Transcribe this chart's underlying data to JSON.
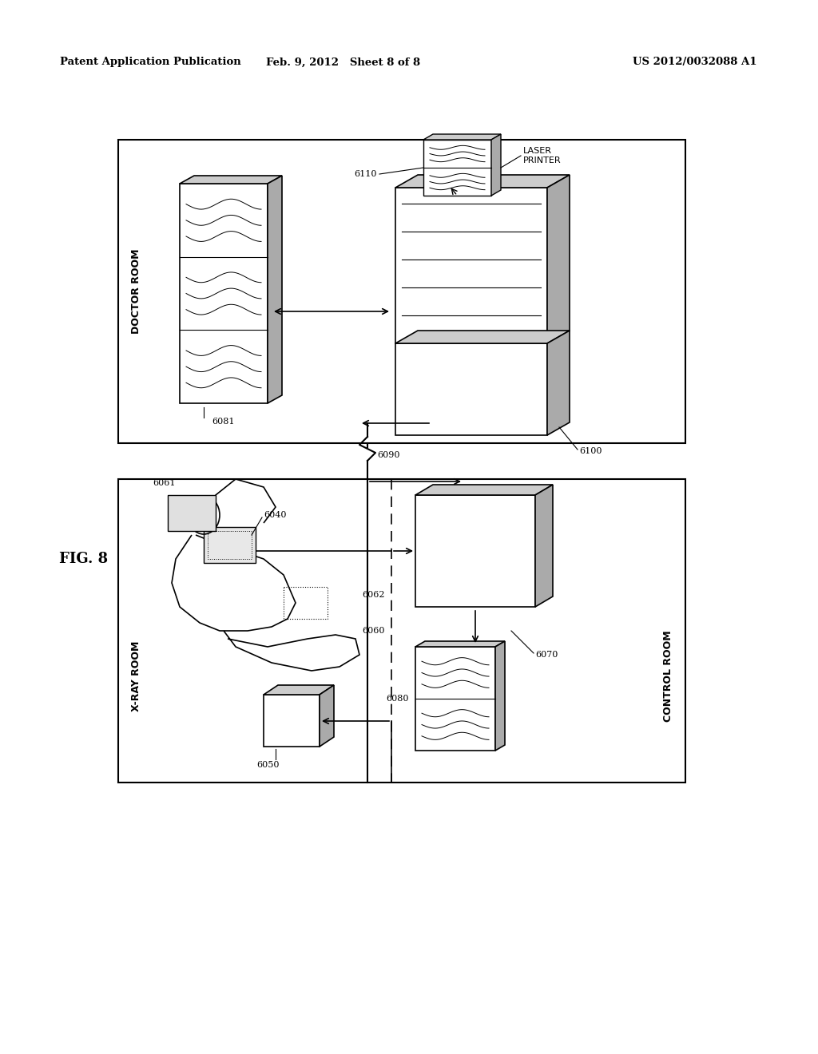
{
  "bg_color": "#ffffff",
  "header_left": "Patent Application Publication",
  "header_mid": "Feb. 9, 2012   Sheet 8 of 8",
  "header_right": "US 2012/0032088 A1",
  "fig_label": "FIG. 8",
  "doctor_room_label": "DOCTOR ROOM",
  "xray_room_label": "X-RAY ROOM",
  "control_room_label": "CONTROL ROOM",
  "laser_printer_label": "LASER\nPRINTER"
}
